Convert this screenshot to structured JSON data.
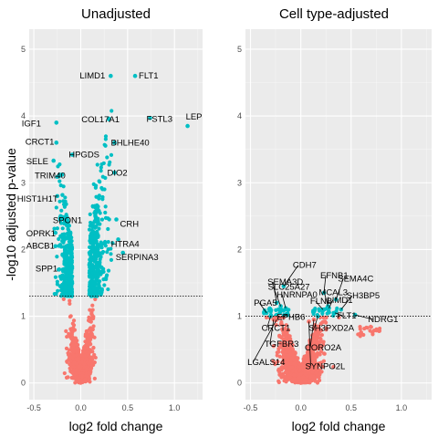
{
  "figure": {
    "xlabel": "log2 fold change",
    "ylabel": "-log10 adjusted p-value",
    "colors": {
      "significant": "#00BFC4",
      "nonsignificant": "#F8766D",
      "panel_background": "#EBEBEB",
      "grid": "#FFFFFF"
    }
  },
  "chart_data": [
    {
      "type": "scatter",
      "title": "Unadjusted",
      "xlim": [
        -0.55,
        1.3
      ],
      "ylim": [
        -0.25,
        5.3
      ],
      "x_ticks": [
        -0.5,
        0,
        0.5,
        1
      ],
      "x_tick_labels": [
        "-0.5",
        "0.0",
        "0.5",
        "1.0"
      ],
      "y_ticks": [
        0,
        1,
        2,
        3,
        4,
        5
      ],
      "y_tick_labels": [
        "0",
        "1",
        "2",
        "3",
        "4",
        "5"
      ],
      "threshold": 1.3,
      "grid": true,
      "labeled_genes": [
        {
          "gene": "LIMD1",
          "x": 0.32,
          "y": 4.6
        },
        {
          "gene": "FLT1",
          "x": 0.58,
          "y": 4.6
        },
        {
          "gene": "FSTL3",
          "x": 0.74,
          "y": 3.97
        },
        {
          "gene": "LEP",
          "x": 1.14,
          "y": 3.85
        },
        {
          "gene": "COL17A1",
          "x": 0.3,
          "y": 3.95
        },
        {
          "gene": "IGF1",
          "x": -0.26,
          "y": 3.9
        },
        {
          "gene": "CRCT1",
          "x": -0.26,
          "y": 3.6
        },
        {
          "gene": "SELE",
          "x": -0.29,
          "y": 3.33
        },
        {
          "gene": "HPGDS",
          "x": -0.09,
          "y": 3.42
        },
        {
          "gene": "BHLHE40",
          "x": 0.36,
          "y": 3.6
        },
        {
          "gene": "TRIM40",
          "x": -0.2,
          "y": 3.12
        },
        {
          "gene": "DIO2",
          "x": 0.36,
          "y": 3.15
        },
        {
          "gene": "HIST1H1T",
          "x": -0.25,
          "y": 2.8
        },
        {
          "gene": "SPON1",
          "x": -0.22,
          "y": 2.45
        },
        {
          "gene": "OPRK1",
          "x": -0.27,
          "y": 2.25
        },
        {
          "gene": "CRH",
          "x": 0.38,
          "y": 2.45
        },
        {
          "gene": "HTRA4",
          "x": 0.4,
          "y": 2.15
        },
        {
          "gene": "ABCB1",
          "x": -0.27,
          "y": 2.05
        },
        {
          "gene": "SERPINA3",
          "x": 0.45,
          "y": 1.95
        },
        {
          "gene": "SPP1",
          "x": -0.23,
          "y": 1.7
        }
      ]
    },
    {
      "type": "scatter",
      "title": "Cell type-adjusted",
      "xlim": [
        -0.55,
        1.3
      ],
      "ylim": [
        -0.25,
        5.3
      ],
      "x_ticks": [
        -0.5,
        0,
        0.5,
        1
      ],
      "x_tick_labels": [
        "-0.5",
        "0.0",
        "0.5",
        "1.0"
      ],
      "y_ticks": [
        0,
        1,
        2,
        3,
        4,
        5
      ],
      "y_tick_labels": [
        "0",
        "1",
        "2",
        "3",
        "4",
        "5"
      ],
      "threshold": 1.0,
      "grid": true,
      "labeled_genes": [
        {
          "gene": "CDH7",
          "x": -0.17,
          "y": 1.45
        },
        {
          "gene": "SEMA3D",
          "x": -0.24,
          "y": 1.2
        },
        {
          "gene": "EFNB1",
          "x": 0.23,
          "y": 1.35
        },
        {
          "gene": "SEMA4C",
          "x": 0.35,
          "y": 1.25
        },
        {
          "gene": "SLC25A27",
          "x": -0.2,
          "y": 1.15
        },
        {
          "gene": "HNRNPA0",
          "x": -0.15,
          "y": 1.12
        },
        {
          "gene": "MCAL3",
          "x": 0.27,
          "y": 1.15
        },
        {
          "gene": "PGA5",
          "x": -0.34,
          "y": 1.05
        },
        {
          "gene": "FLNB",
          "x": 0.22,
          "y": 1.1
        },
        {
          "gene": "LIMD1",
          "x": 0.28,
          "y": 1.12
        },
        {
          "gene": "SH3BP5",
          "x": 0.4,
          "y": 1.1
        },
        {
          "gene": "EPHB6",
          "x": -0.13,
          "y": 1.03
        },
        {
          "gene": "FLT1",
          "x": 0.34,
          "y": 1.05
        },
        {
          "gene": "CRCT1",
          "x": -0.3,
          "y": 1.0
        },
        {
          "gene": "SH3PXD2A",
          "x": 0.17,
          "y": 1.0
        },
        {
          "gene": "NDRG1",
          "x": 0.54,
          "y": 1.02
        },
        {
          "gene": "TGFBR3",
          "x": -0.27,
          "y": 0.95
        },
        {
          "gene": "CORO2A",
          "x": 0.13,
          "y": 0.95
        },
        {
          "gene": "LGALS14",
          "x": -0.24,
          "y": 0.95
        },
        {
          "gene": "SYNPO2L",
          "x": 0.08,
          "y": 0.92
        }
      ]
    }
  ]
}
